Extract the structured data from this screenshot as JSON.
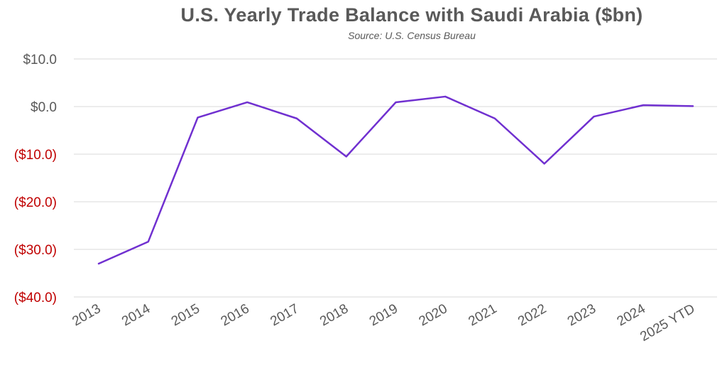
{
  "chart_data": {
    "type": "line",
    "title": "U.S. Yearly Trade Balance with Saudi Arabia ($bn)",
    "subtitle": "Source: U.S. Census Bureau",
    "xlabel": "",
    "ylabel": "",
    "categories": [
      "2013",
      "2014",
      "2015",
      "2016",
      "2017",
      "2018",
      "2019",
      "2020",
      "2021",
      "2022",
      "2023",
      "2024",
      "2025 YTD"
    ],
    "series": [
      {
        "values": [
          -33.0,
          -28.4,
          -2.3,
          0.9,
          -2.5,
          -10.5,
          0.9,
          2.1,
          -2.5,
          -12.0,
          -2.1,
          0.3,
          0.1
        ],
        "color": "#7030d0"
      }
    ],
    "ylim": [
      -40,
      10
    ],
    "yticks": [
      10,
      0,
      -10,
      -20,
      -30,
      -40
    ],
    "ytick_labels": [
      "$10.0",
      "$0.0",
      "($10.0)",
      "($20.0)",
      "($30.0)",
      "($40.0)"
    ],
    "positive_tick_color": "#595959",
    "negative_tick_color": "#c00000",
    "grid": true,
    "legend": "none"
  }
}
